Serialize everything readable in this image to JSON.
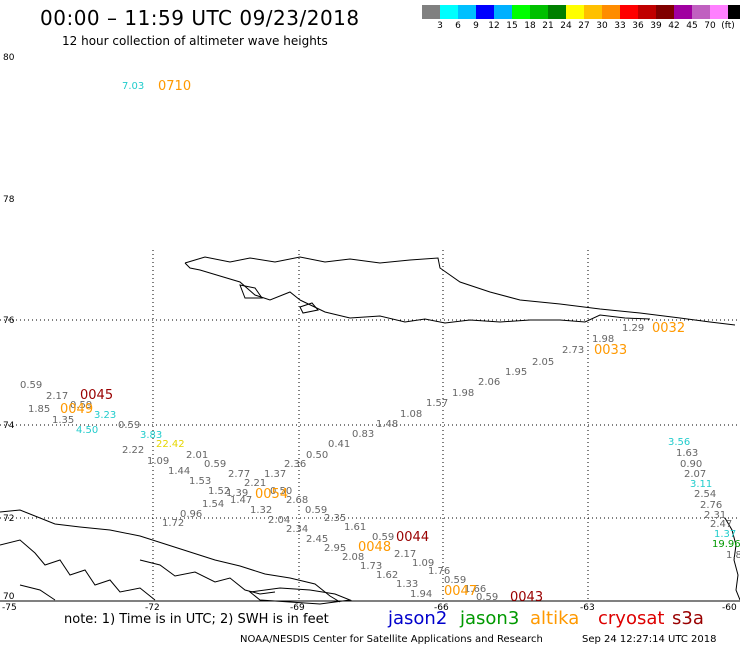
{
  "header": {
    "title": "00:00 – 11:59 UTC 09/23/2018",
    "subtitle": "12 hour collection of altimeter wave heights"
  },
  "legend": {
    "colors": [
      "#808080",
      "#00ffff",
      "#00c0ff",
      "#0000ff",
      "#00b0ff",
      "#00ff00",
      "#00c000",
      "#008000",
      "#ffff00",
      "#ffc000",
      "#ff8c00",
      "#ff0000",
      "#c00000",
      "#800000",
      "#a000a0",
      "#c060c0",
      "#ff80ff",
      "#000000"
    ],
    "labels": [
      "3",
      "6",
      "9",
      "12",
      "15",
      "18",
      "21",
      "24",
      "27",
      "30",
      "33",
      "36",
      "39",
      "42",
      "45",
      "70",
      "(ft)"
    ]
  },
  "axes": {
    "lat_labels": [
      "80",
      "78",
      "76",
      "74",
      "72",
      "70"
    ],
    "lon_labels": [
      "-75",
      "-72",
      "-69",
      "-66",
      "-63",
      "-60"
    ]
  },
  "tracks": {
    "gray": [
      {
        "t": "0.59"
      },
      {
        "t": "2.17"
      },
      {
        "t": "1.85"
      },
      {
        "t": "0.59"
      },
      {
        "t": "1.35"
      },
      {
        "t": "0.59"
      },
      {
        "t": "2.22"
      },
      {
        "t": "1.09"
      },
      {
        "t": "1.44"
      },
      {
        "t": "2.01"
      },
      {
        "t": "0.59"
      },
      {
        "t": "1.53"
      },
      {
        "t": "2.77"
      },
      {
        "t": "1.52"
      },
      {
        "t": "1.39"
      },
      {
        "t": "1.54"
      },
      {
        "t": "1.47"
      },
      {
        "t": "1.32"
      },
      {
        "t": "0.96"
      },
      {
        "t": "1.72"
      },
      {
        "t": "2.04"
      },
      {
        "t": "2.34"
      },
      {
        "t": "2.45"
      },
      {
        "t": "2.95"
      },
      {
        "t": "2.08"
      },
      {
        "t": "1.73"
      },
      {
        "t": "1.62"
      },
      {
        "t": "1.33"
      },
      {
        "t": "1.94"
      },
      {
        "t": "0.59"
      },
      {
        "t": "1.66"
      },
      {
        "t": "0.59"
      },
      {
        "t": "1.76"
      },
      {
        "t": "1.09"
      },
      {
        "t": "2.17"
      },
      {
        "t": "0.59"
      },
      {
        "t": "1.61"
      },
      {
        "t": "2.35"
      },
      {
        "t": "0.59"
      },
      {
        "t": "2.68"
      },
      {
        "t": "0.50"
      },
      {
        "t": "2.36"
      },
      {
        "t": "1.37"
      },
      {
        "t": "2.21"
      },
      {
        "t": "0.50"
      },
      {
        "t": "0.41"
      },
      {
        "t": "0.83"
      },
      {
        "t": "1.48"
      },
      {
        "t": "1.08"
      },
      {
        "t": "1.57"
      },
      {
        "t": "1.98"
      },
      {
        "t": "2.06"
      },
      {
        "t": "1.95"
      },
      {
        "t": "2.05"
      },
      {
        "t": "2.73"
      },
      {
        "t": "1.98"
      },
      {
        "t": "1.29"
      },
      {
        "t": "1.63"
      },
      {
        "t": "0.90"
      },
      {
        "t": "2.07"
      },
      {
        "t": "2.54"
      },
      {
        "t": "2.76"
      },
      {
        "t": "2.31"
      },
      {
        "t": "2.47"
      },
      {
        "t": "1.8"
      }
    ],
    "cyan": [
      {
        "t": "7.03"
      },
      {
        "t": "3.23"
      },
      {
        "t": "4.50"
      },
      {
        "t": "3.83"
      },
      {
        "t": "3.56"
      },
      {
        "t": "3.11"
      },
      {
        "t": "1.37"
      }
    ],
    "yellow": [
      {
        "t": "22.42"
      }
    ],
    "green": [
      {
        "t": "19.96"
      }
    ],
    "times_orange": [
      "0710",
      "0049",
      "0032",
      "0033",
      "0054",
      "0048",
      "0047"
    ],
    "times_darkred": [
      "0045",
      "0044",
      "0043"
    ]
  },
  "footer": {
    "note": "note:  1) Time is in UTC;  2) SWH is in feet",
    "missions": [
      {
        "name": "jason2",
        "color": "#0000cc"
      },
      {
        "name": "jason3",
        "color": "#009900"
      },
      {
        "name": "altika",
        "color": "#ff9900"
      },
      {
        "name": "cryosat",
        "color": "#dd0000"
      },
      {
        "name": "s3a",
        "color": "#990000"
      }
    ],
    "credit": "NOAA/NESDIS Center for Satellite Applications and Research",
    "timestamp": "Sep 24 12:27:14 UTC 2018"
  }
}
